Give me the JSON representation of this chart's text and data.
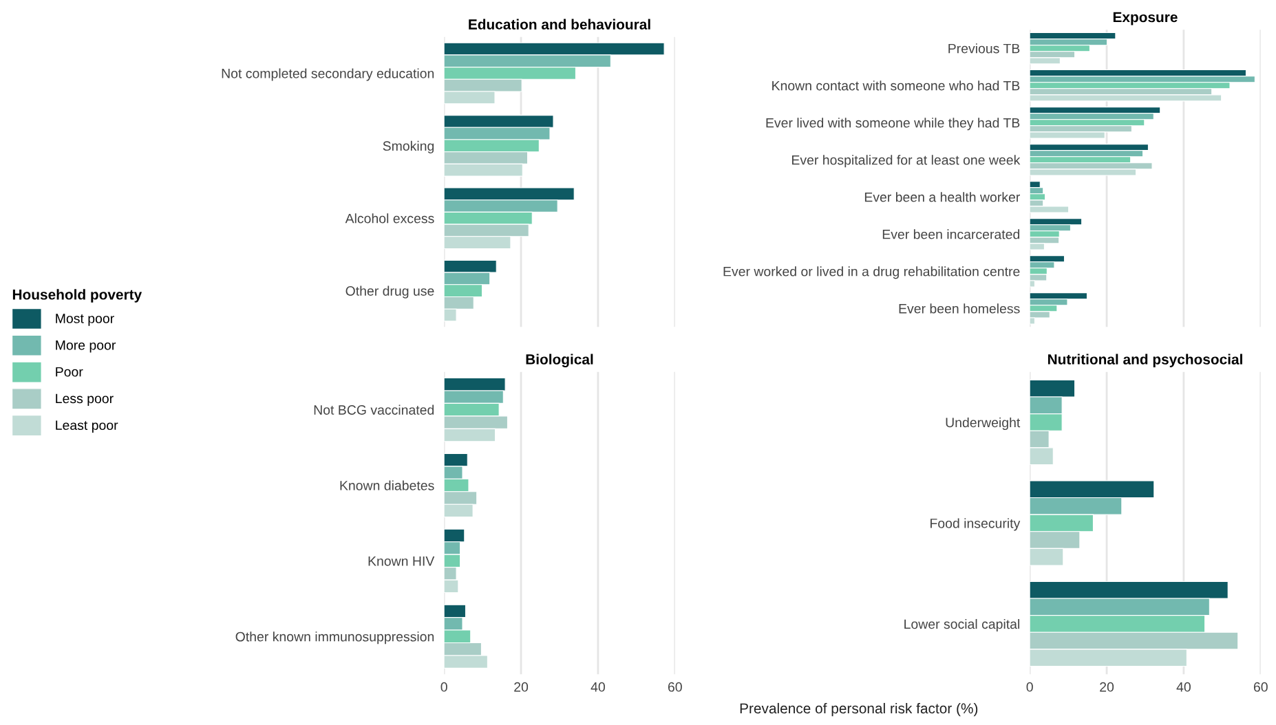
{
  "chart_data": [
    {
      "type": "bar",
      "orientation": "horizontal",
      "title": "Education and behavioural",
      "categories": [
        "Not completed secondary education",
        "Smoking",
        "Alcohol excess",
        "Other drug use"
      ],
      "xlim": [
        0,
        60
      ],
      "xticks": [
        0,
        20,
        40,
        60
      ],
      "tick_labels": "y",
      "grid": "x",
      "legend": "left",
      "legend_title": "Household poverty",
      "series": [
        {
          "name": "Most poor",
          "color": "#0e5a63",
          "values": [
            57.2,
            28.4,
            33.8,
            13.6
          ]
        },
        {
          "name": "More poor",
          "color": "#72b9af",
          "values": [
            43.3,
            27.5,
            29.5,
            11.9
          ]
        },
        {
          "name": "Poor",
          "color": "#73cfae",
          "values": [
            34.2,
            24.7,
            22.9,
            9.9
          ]
        },
        {
          "name": "Less poor",
          "color": "#a9cdc6",
          "values": [
            20.2,
            21.7,
            22.0,
            7.7
          ]
        },
        {
          "name": "Least poor",
          "color": "#c1dcd6",
          "values": [
            13.2,
            20.4,
            17.3,
            3.2
          ]
        }
      ]
    },
    {
      "type": "bar",
      "orientation": "horizontal",
      "title": "Exposure",
      "categories": [
        "Previous TB",
        "Known contact with someone who had TB",
        "Ever lived with someone while they had TB",
        "Ever hospitalized for at least one week",
        "Ever been a health worker",
        "Ever been incarcerated",
        "Ever worked or lived in a drug rehabilitation centre",
        "Ever been homeless"
      ],
      "xlim": [
        0,
        60
      ],
      "xticks": [
        0,
        20,
        40,
        60
      ],
      "tick_labels": "y",
      "grid": "x",
      "series": [
        {
          "color": "#0e5a63",
          "values": [
            22.3,
            56.2,
            33.9,
            30.8,
            2.7,
            13.5,
            9.0,
            14.9
          ]
        },
        {
          "color": "#72b9af",
          "values": [
            20.1,
            58.5,
            32.2,
            29.4,
            3.5,
            10.6,
            6.4,
            9.8
          ]
        },
        {
          "color": "#73cfae",
          "values": [
            15.6,
            52.0,
            29.8,
            26.2,
            4.0,
            7.7,
            4.5,
            7.1
          ]
        },
        {
          "color": "#a9cdc6",
          "values": [
            11.7,
            47.3,
            26.5,
            31.8,
            3.5,
            7.6,
            4.4,
            5.2
          ]
        },
        {
          "color": "#c1dcd6",
          "values": [
            7.9,
            49.8,
            19.5,
            27.6,
            10.1,
            3.8,
            1.3,
            1.3
          ]
        }
      ]
    },
    {
      "type": "bar",
      "orientation": "horizontal",
      "title": "Biological",
      "categories": [
        "Not BCG vaccinated",
        "Known diabetes",
        "Known HIV",
        "Other known immunosuppression"
      ],
      "xlim": [
        0,
        60
      ],
      "xticks": [
        0,
        20,
        40,
        60
      ],
      "grid": "x",
      "series": [
        {
          "color": "#0e5a63",
          "values": [
            15.9,
            6.1,
            5.3,
            5.6
          ]
        },
        {
          "color": "#72b9af",
          "values": [
            15.4,
            4.8,
            4.2,
            4.8
          ]
        },
        {
          "color": "#73cfae",
          "values": [
            14.3,
            6.4,
            4.2,
            6.9
          ]
        },
        {
          "color": "#a9cdc6",
          "values": [
            16.5,
            8.5,
            3.2,
            9.7
          ]
        },
        {
          "color": "#c1dcd6",
          "values": [
            13.3,
            7.5,
            3.7,
            11.3
          ]
        }
      ]
    },
    {
      "type": "bar",
      "orientation": "horizontal",
      "title": "Nutritional and psychosocial",
      "xlabel": "Prevalence of personal risk factor (%)",
      "categories": [
        "Underweight",
        "Food insecurity",
        "Lower social capital"
      ],
      "xlim": [
        0,
        60
      ],
      "xticks": [
        0,
        20,
        40,
        60
      ],
      "grid": "x",
      "series": [
        {
          "color": "#0e5a63",
          "values": [
            11.7,
            32.3,
            51.5
          ]
        },
        {
          "color": "#72b9af",
          "values": [
            8.4,
            23.9,
            46.7
          ]
        },
        {
          "color": "#73cfae",
          "values": [
            8.4,
            16.5,
            45.5
          ]
        },
        {
          "color": "#a9cdc6",
          "values": [
            5.0,
            13.0,
            54.1
          ]
        },
        {
          "color": "#c1dcd6",
          "values": [
            6.1,
            8.7,
            40.8
          ]
        }
      ]
    }
  ]
}
